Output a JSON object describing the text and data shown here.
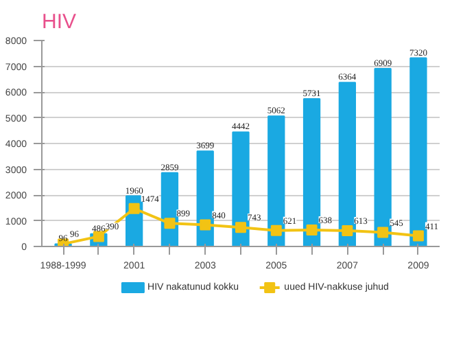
{
  "chart_data": {
    "type": "bar",
    "title": "HIV",
    "categories": [
      "1988-1999",
      null,
      "2001",
      null,
      "2003",
      null,
      "2005",
      null,
      "2007",
      null,
      "2009"
    ],
    "series": [
      {
        "name": "HIV nakatunud kokku",
        "color": "#1aa9e2",
        "values": [
          96,
          486,
          1960,
          2859,
          3699,
          4442,
          5062,
          5731,
          6364,
          6909,
          7320
        ]
      },
      {
        "name": "uued HIV-nakkuse juhud",
        "type": "line",
        "color": "#f2c314",
        "marker": "square",
        "values": [
          96,
          390,
          1474,
          899,
          840,
          743,
          621,
          638,
          613,
          545,
          411
        ]
      }
    ],
    "ylim": [
      0,
      8000
    ],
    "yticks": [
      0,
      1000,
      2000,
      3000,
      4000,
      5000,
      6000,
      7000,
      8000
    ],
    "grid": "y",
    "legend": "bottom",
    "data_labels": true
  }
}
